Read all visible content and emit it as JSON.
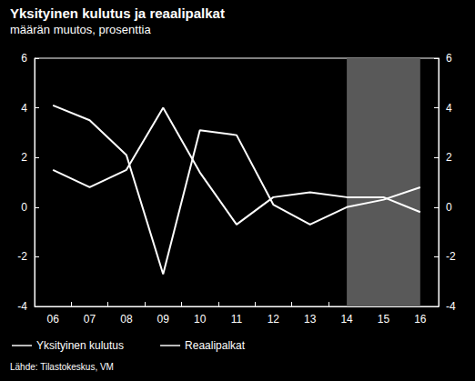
{
  "chart_data": {
    "type": "line",
    "title": "Yksityinen kulutus ja reaalipalkat",
    "subtitle": "määrän muutos, prosenttia",
    "source": "Lähde: Tilastokeskus, VM",
    "categories": [
      "06",
      "07",
      "08",
      "09",
      "10",
      "11",
      "12",
      "13",
      "14",
      "15",
      "16"
    ],
    "series": [
      {
        "name": "Yksityinen kulutus",
        "color": "#ffffff",
        "line_style": "solid",
        "values": [
          4.1,
          3.5,
          2.1,
          -2.7,
          3.1,
          2.9,
          0.1,
          -0.7,
          0.0,
          0.3,
          0.8
        ]
      },
      {
        "name": "Reaalipalkat",
        "color": "#ffffff",
        "line_style": "solid",
        "values": [
          1.5,
          0.8,
          1.5,
          4.0,
          1.4,
          -0.7,
          0.4,
          0.6,
          0.4,
          0.4,
          -0.2
        ]
      }
    ],
    "shaded_categories": [
      "14",
      "16"
    ],
    "ylim": [
      -4,
      6
    ],
    "yticks": [
      -4,
      -2,
      0,
      2,
      4,
      6
    ],
    "y2lim": [
      -4,
      6
    ],
    "y2ticks": [
      -4,
      -2,
      0,
      2,
      4,
      6
    ],
    "grid": false,
    "legend": "bottom-left"
  }
}
